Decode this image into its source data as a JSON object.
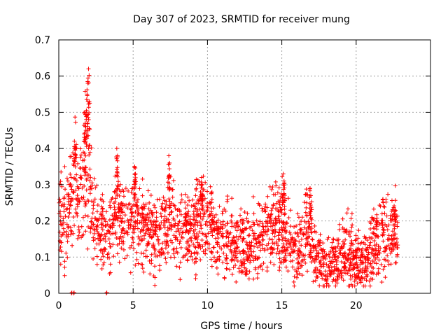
{
  "chart_data": {
    "type": "scatter",
    "title": "Day 307 of 2023, SRMTID for receiver mung",
    "xlabel": "GPS time / hours",
    "ylabel": "SRMTID / TECUs",
    "xlim": [
      0,
      25
    ],
    "ylim": [
      0,
      0.7
    ],
    "xticks": [
      0,
      5,
      10,
      15,
      20
    ],
    "yticks": [
      0,
      0.1,
      0.2,
      0.3,
      0.4,
      0.5,
      0.6,
      0.7
    ],
    "xtick_labels": [
      "0",
      "5",
      "10",
      "15",
      "20"
    ],
    "ytick_labels": [
      "0",
      "0.1",
      "0.2",
      "0.3",
      "0.4",
      "0.5",
      "0.6",
      "0.7"
    ],
    "grid": true,
    "marker": "+",
    "color": "#ff0000",
    "series": [
      {
        "name": "SRMTID",
        "trend": [
          [
            0.0,
            0.22
          ],
          [
            0.5,
            0.2
          ],
          [
            0.9,
            0.26
          ],
          [
            1.1,
            0.33
          ],
          [
            1.3,
            0.28
          ],
          [
            1.6,
            0.3
          ],
          [
            1.8,
            0.38
          ],
          [
            2.0,
            0.3
          ],
          [
            2.3,
            0.2
          ],
          [
            2.6,
            0.16
          ],
          [
            2.9,
            0.17
          ],
          [
            3.2,
            0.15
          ],
          [
            3.5,
            0.18
          ],
          [
            3.8,
            0.22
          ],
          [
            4.1,
            0.2
          ],
          [
            4.5,
            0.21
          ],
          [
            4.9,
            0.2
          ],
          [
            5.3,
            0.2
          ],
          [
            5.7,
            0.19
          ],
          [
            6.2,
            0.16
          ],
          [
            6.7,
            0.17
          ],
          [
            7.2,
            0.19
          ],
          [
            7.6,
            0.2
          ],
          [
            8.0,
            0.17
          ],
          [
            8.5,
            0.16
          ],
          [
            9.0,
            0.18
          ],
          [
            9.4,
            0.2
          ],
          [
            9.8,
            0.21
          ],
          [
            10.2,
            0.17
          ],
          [
            10.7,
            0.15
          ],
          [
            11.2,
            0.16
          ],
          [
            11.7,
            0.14
          ],
          [
            12.2,
            0.13
          ],
          [
            12.7,
            0.13
          ],
          [
            13.2,
            0.14
          ],
          [
            13.7,
            0.16
          ],
          [
            14.2,
            0.19
          ],
          [
            14.7,
            0.18
          ],
          [
            15.1,
            0.19
          ],
          [
            15.5,
            0.15
          ],
          [
            15.9,
            0.12
          ],
          [
            16.3,
            0.13
          ],
          [
            16.7,
            0.18
          ],
          [
            17.1,
            0.13
          ],
          [
            17.5,
            0.09
          ],
          [
            18.0,
            0.07
          ],
          [
            18.5,
            0.08
          ],
          [
            18.9,
            0.1
          ],
          [
            19.3,
            0.11
          ],
          [
            19.7,
            0.11
          ],
          [
            20.1,
            0.08
          ],
          [
            20.5,
            0.07
          ],
          [
            20.9,
            0.1
          ],
          [
            21.3,
            0.14
          ],
          [
            21.7,
            0.16
          ],
          [
            22.1,
            0.15
          ],
          [
            22.5,
            0.17
          ],
          [
            22.8,
            0.18
          ]
        ],
        "spikes": [
          [
            1.05,
            0.42
          ],
          [
            1.15,
            0.4
          ],
          [
            1.75,
            0.5
          ],
          [
            1.85,
            0.48
          ],
          [
            1.9,
            0.55
          ],
          [
            1.95,
            0.58
          ],
          [
            2.0,
            0.62
          ],
          [
            2.05,
            0.53
          ],
          [
            3.9,
            0.4
          ],
          [
            3.95,
            0.38
          ],
          [
            5.1,
            0.35
          ],
          [
            5.15,
            0.33
          ],
          [
            7.4,
            0.38
          ],
          [
            7.45,
            0.36
          ],
          [
            9.6,
            0.32
          ],
          [
            9.65,
            0.3
          ],
          [
            10.3,
            0.28
          ],
          [
            15.1,
            0.33
          ],
          [
            15.15,
            0.31
          ],
          [
            16.9,
            0.29
          ],
          [
            16.95,
            0.27
          ],
          [
            21.8,
            0.26
          ],
          [
            22.6,
            0.23
          ]
        ],
        "zero_points": [
          0.85,
          1.0,
          3.2
        ],
        "count": 2200
      }
    ]
  }
}
